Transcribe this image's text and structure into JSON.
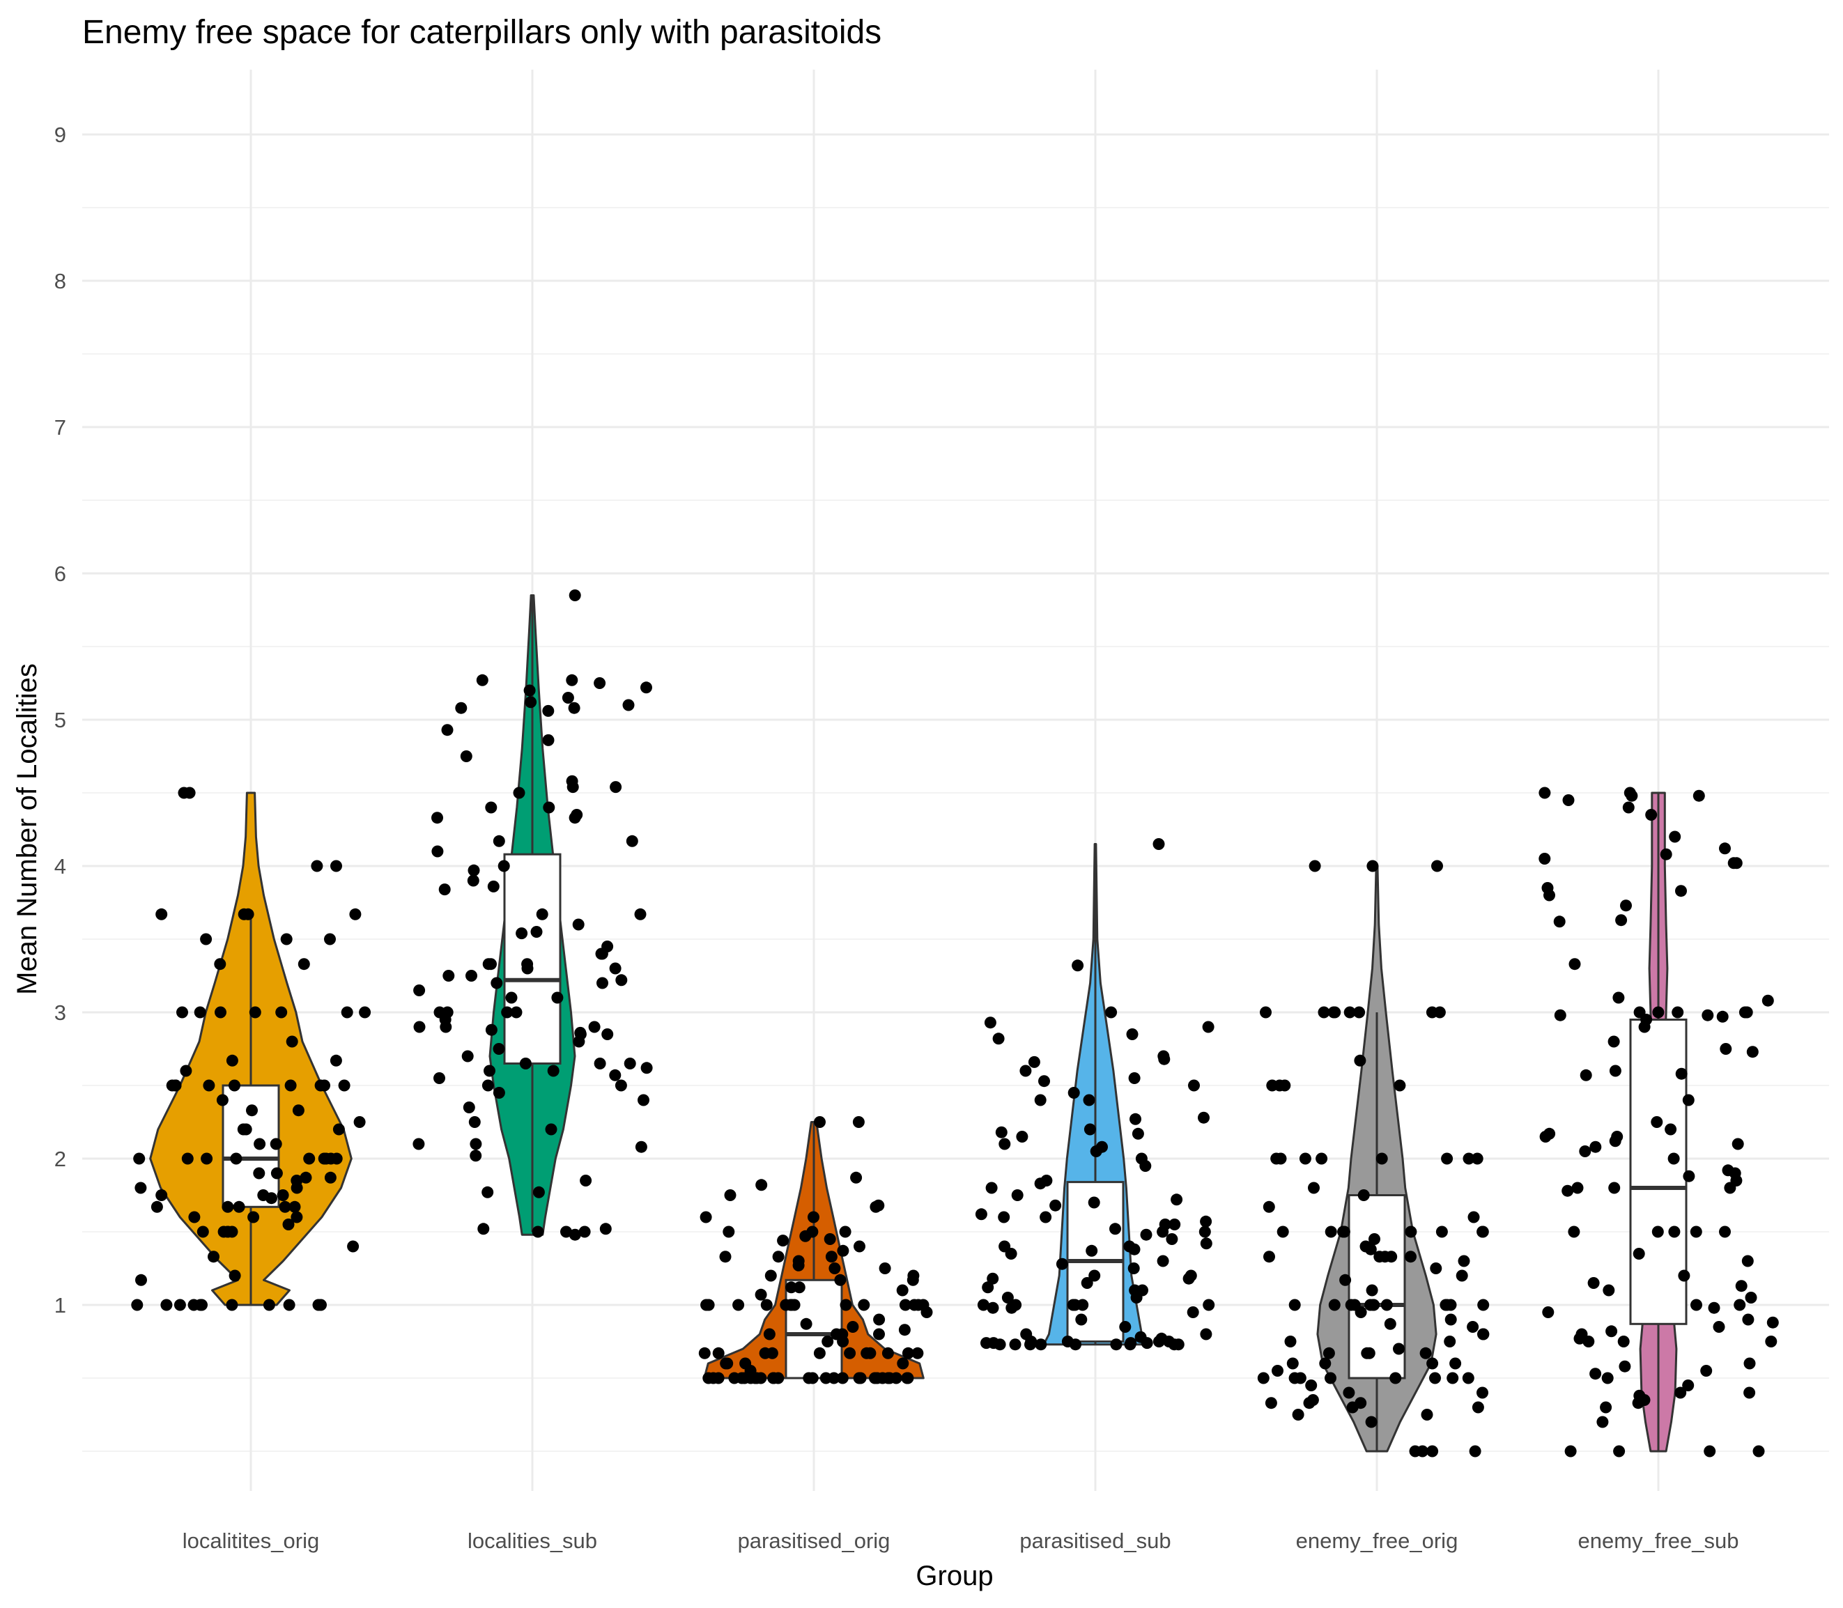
{
  "chart_data": {
    "type": "violin",
    "title": "Enemy free space for caterpillars only with parasitoids",
    "xlabel": "Group",
    "ylabel": "Mean Number of Localities",
    "ylim": [
      -0.3,
      9.45
    ],
    "y_ticks": [
      1,
      2,
      3,
      4,
      5,
      6,
      7,
      8,
      9
    ],
    "grid": true,
    "legend": "none",
    "categories": [
      "localitites_orig",
      "localities_sub",
      "parasitised_orig",
      "parasitised_sub",
      "enemy_free_orig",
      "enemy_free_sub"
    ],
    "series": [
      {
        "category": "localitites_orig",
        "color": "#E69F00",
        "box": {
          "q1": 1.67,
          "median": 2.0,
          "q3": 2.5,
          "whisker_low": 1.0,
          "whisker_high": 3.67
        },
        "violin_profile": [
          [
            1.0,
            0.2
          ],
          [
            1.1,
            0.3
          ],
          [
            1.17,
            0.1
          ],
          [
            1.3,
            0.25
          ],
          [
            1.6,
            0.55
          ],
          [
            1.8,
            0.7
          ],
          [
            2.0,
            0.78
          ],
          [
            2.2,
            0.72
          ],
          [
            2.5,
            0.55
          ],
          [
            2.8,
            0.4
          ],
          [
            3.0,
            0.35
          ],
          [
            3.2,
            0.28
          ],
          [
            3.5,
            0.18
          ],
          [
            3.8,
            0.1
          ],
          [
            4.0,
            0.06
          ],
          [
            4.2,
            0.04
          ],
          [
            4.5,
            0.03
          ]
        ],
        "points": [
          3.5,
          3.5,
          3.0,
          3.0,
          2.8,
          2.5,
          2.5,
          2.2,
          2.33,
          2.0,
          1.87,
          1.33,
          1.0,
          1.0,
          1.0,
          4.5,
          4.5,
          4.0,
          4.0,
          3.5,
          3.67,
          3.67,
          3.33,
          3.33,
          3.0,
          3.0,
          3.0,
          2.67,
          2.67,
          2.5,
          2.5,
          2.5,
          2.5,
          2.5,
          2.4,
          2.33,
          2.25,
          2.2,
          2.0,
          2.0,
          2.0,
          2.0,
          2.0,
          2.0,
          1.9,
          1.87,
          1.8,
          1.75,
          1.73,
          1.67,
          1.67,
          1.67,
          1.6,
          1.6,
          1.5,
          1.5,
          1.5,
          1.4,
          1.2,
          1.17,
          1.0,
          1.0,
          1.0,
          1.0,
          1.0,
          1.0,
          1.0,
          2.6,
          2.5,
          2.2,
          2.1,
          2.0,
          1.9,
          1.85,
          1.8,
          1.75,
          1.67,
          1.6,
          1.55,
          1.5,
          3.67,
          3.67,
          3.0,
          3.0,
          2.5,
          2.1,
          2.0,
          1.75,
          1.67,
          1.5,
          1.0
        ]
      },
      {
        "category": "localities_sub",
        "color": "#009E73",
        "box": {
          "q1": 2.65,
          "median": 3.22,
          "q3": 4.08,
          "whisker_low": 1.5,
          "whisker_high": 5.85
        },
        "violin_profile": [
          [
            1.48,
            0.08
          ],
          [
            1.6,
            0.1
          ],
          [
            1.8,
            0.14
          ],
          [
            2.0,
            0.18
          ],
          [
            2.2,
            0.24
          ],
          [
            2.5,
            0.3
          ],
          [
            2.7,
            0.33
          ],
          [
            3.0,
            0.3
          ],
          [
            3.3,
            0.26
          ],
          [
            3.6,
            0.22
          ],
          [
            4.0,
            0.17
          ],
          [
            4.4,
            0.12
          ],
          [
            4.8,
            0.08
          ],
          [
            5.2,
            0.05
          ],
          [
            5.6,
            0.025
          ],
          [
            5.85,
            0.01
          ]
        ],
        "points": [
          5.85,
          5.27,
          5.25,
          5.22,
          5.12,
          5.08,
          5.06,
          4.58,
          4.54,
          4.4,
          4.35,
          4.33,
          4.17,
          4.1,
          3.9,
          3.54,
          3.4,
          3.33,
          3.3,
          3.25,
          3.2,
          3.1,
          3.0,
          2.9,
          2.88,
          2.86,
          2.85,
          2.65,
          2.62,
          2.6,
          2.57,
          2.5,
          2.1,
          2.1,
          1.77,
          1.5,
          1.48,
          5.27,
          5.2,
          5.15,
          5.1,
          5.08,
          4.93,
          4.86,
          4.75,
          4.54,
          4.5,
          4.4,
          4.33,
          4.17,
          4.0,
          3.97,
          3.86,
          3.84,
          3.67,
          3.67,
          3.6,
          3.55,
          3.45,
          3.4,
          3.33,
          3.33,
          3.3,
          3.25,
          3.22,
          3.2,
          3.15,
          3.1,
          3.0,
          3.0,
          3.0,
          2.95,
          2.9,
          2.9,
          2.85,
          2.8,
          2.75,
          2.7,
          2.65,
          2.65,
          2.6,
          2.55,
          2.5,
          2.45,
          2.4,
          2.35,
          2.25,
          2.2,
          2.08,
          2.02,
          1.85,
          1.77,
          1.52,
          1.52,
          1.5,
          1.5
        ]
      },
      {
        "category": "parasitised_orig",
        "color": "#D55E00",
        "box": {
          "q1": 0.5,
          "median": 0.8,
          "q3": 1.17,
          "whisker_low": 0.5,
          "whisker_high": 2.25
        },
        "violin_profile": [
          [
            0.5,
            0.85
          ],
          [
            0.6,
            0.82
          ],
          [
            0.7,
            0.55
          ],
          [
            0.8,
            0.42
          ],
          [
            0.9,
            0.38
          ],
          [
            1.0,
            0.3
          ],
          [
            1.2,
            0.25
          ],
          [
            1.4,
            0.2
          ],
          [
            1.6,
            0.15
          ],
          [
            1.8,
            0.1
          ],
          [
            2.0,
            0.06
          ],
          [
            2.25,
            0.02
          ]
        ],
        "points": [
          2.25,
          2.25,
          1.87,
          1.82,
          1.75,
          1.67,
          1.6,
          1.5,
          1.5,
          1.47,
          1.44,
          1.4,
          1.37,
          1.33,
          1.33,
          1.3,
          1.27,
          1.25,
          1.2,
          1.2,
          1.17,
          1.17,
          1.12,
          1.1,
          1.07,
          1.0,
          1.0,
          1.0,
          1.0,
          1.0,
          1.0,
          1.0,
          1.0,
          1.0,
          1.0,
          1.0,
          1.0,
          1.0,
          0.95,
          0.9,
          0.87,
          0.85,
          0.83,
          0.8,
          0.8,
          0.8,
          0.75,
          0.75,
          0.67,
          0.67,
          0.67,
          0.67,
          0.67,
          0.67,
          0.67,
          0.67,
          0.67,
          0.67,
          0.6,
          0.6,
          0.6,
          0.55,
          0.5,
          0.5,
          0.5,
          0.5,
          0.5,
          0.5,
          0.5,
          0.5,
          0.5,
          0.5,
          0.5,
          0.5,
          0.5,
          0.5,
          0.5,
          0.5,
          0.5,
          0.5,
          0.5,
          0.5,
          0.5,
          0.5,
          0.5,
          0.5,
          0.5,
          0.5,
          1.68,
          1.6,
          1.5,
          1.45,
          1.33,
          1.25,
          1.12,
          1.0,
          0.8,
          0.67,
          0.6,
          0.5,
          0.5
        ]
      },
      {
        "category": "parasitised_sub",
        "color": "#56B4E9",
        "box": {
          "q1": 0.75,
          "median": 1.3,
          "q3": 1.84,
          "whisker_low": 0.73,
          "whisker_high": 4.15
        },
        "violin_profile": [
          [
            0.73,
            0.4
          ],
          [
            0.8,
            0.36
          ],
          [
            1.0,
            0.32
          ],
          [
            1.2,
            0.28
          ],
          [
            1.5,
            0.26
          ],
          [
            1.8,
            0.24
          ],
          [
            2.0,
            0.22
          ],
          [
            2.3,
            0.18
          ],
          [
            2.6,
            0.14
          ],
          [
            2.9,
            0.09
          ],
          [
            3.2,
            0.04
          ],
          [
            3.5,
            0.015
          ],
          [
            4.15,
            0.005
          ]
        ],
        "points": [
          4.15,
          3.32,
          2.93,
          2.9,
          2.7,
          2.68,
          2.66,
          2.6,
          2.55,
          2.5,
          2.45,
          2.4,
          2.28,
          2.27,
          2.2,
          2.17,
          2.08,
          2.05,
          2.0,
          1.95,
          1.85,
          1.83,
          1.8,
          1.75,
          1.72,
          1.7,
          1.68,
          1.62,
          1.6,
          1.57,
          1.55,
          1.52,
          1.5,
          1.5,
          1.48,
          1.45,
          1.42,
          1.4,
          1.38,
          1.35,
          1.3,
          1.28,
          1.25,
          1.2,
          1.18,
          1.15,
          1.12,
          1.1,
          1.05,
          1.0,
          1.0,
          1.0,
          1.0,
          0.98,
          0.95,
          0.9,
          0.85,
          0.8,
          0.77,
          0.75,
          0.75,
          0.75,
          0.74,
          0.74,
          0.74,
          0.73,
          0.73,
          0.73,
          0.73,
          0.73,
          0.73,
          0.73,
          0.73,
          3.0,
          2.85,
          2.82,
          2.53,
          2.4,
          2.18,
          2.15,
          2.1,
          1.6,
          1.55,
          1.4,
          1.37,
          1.2,
          1.18,
          1.1,
          1.05,
          1.0,
          1.0,
          0.98,
          0.8,
          0.78,
          0.75,
          0.74,
          0.73
        ]
      },
      {
        "category": "enemy_free_orig",
        "color": "#999999",
        "box": {
          "q1": 0.5,
          "median": 1.0,
          "q3": 1.75,
          "whisker_low": 0.0,
          "whisker_high": 3.0
        },
        "violin_profile": [
          [
            0.0,
            0.08
          ],
          [
            0.2,
            0.18
          ],
          [
            0.4,
            0.3
          ],
          [
            0.6,
            0.42
          ],
          [
            0.8,
            0.46
          ],
          [
            1.0,
            0.44
          ],
          [
            1.2,
            0.38
          ],
          [
            1.5,
            0.28
          ],
          [
            1.8,
            0.22
          ],
          [
            2.0,
            0.2
          ],
          [
            2.3,
            0.16
          ],
          [
            2.6,
            0.12
          ],
          [
            3.0,
            0.07
          ],
          [
            3.3,
            0.035
          ],
          [
            3.6,
            0.015
          ],
          [
            4.0,
            0.005
          ]
        ],
        "points": [
          4.0,
          4.0,
          3.0,
          3.0,
          3.0,
          3.0,
          3.0,
          3.0,
          2.67,
          2.5,
          2.5,
          2.0,
          2.0,
          2.0,
          2.0,
          2.0,
          2.0,
          2.0,
          1.8,
          1.6,
          1.5,
          1.5,
          1.5,
          1.5,
          1.5,
          1.5,
          1.5,
          1.45,
          1.4,
          1.38,
          1.33,
          1.33,
          1.33,
          1.33,
          1.3,
          1.25,
          1.2,
          1.17,
          1.1,
          1.0,
          1.0,
          1.0,
          1.0,
          1.0,
          1.0,
          1.0,
          1.0,
          1.0,
          1.0,
          1.0,
          0.95,
          0.9,
          0.87,
          0.85,
          0.8,
          0.8,
          0.75,
          0.7,
          0.67,
          0.67,
          0.67,
          0.6,
          0.6,
          0.6,
          0.55,
          0.5,
          0.5,
          0.5,
          0.5,
          0.5,
          0.5,
          0.5,
          0.45,
          0.4,
          0.4,
          0.35,
          0.33,
          0.33,
          0.3,
          0.25,
          0.2,
          0.0,
          0.0,
          0.0,
          0.0,
          4.0,
          3.0,
          3.0,
          2.5,
          2.5,
          2.0,
          1.75,
          1.67,
          1.5,
          1.33,
          1.0,
          0.75,
          0.67,
          0.6,
          0.5,
          0.33,
          0.3,
          0.25
        ]
      },
      {
        "category": "enemy_free_sub",
        "color": "#CC79A7",
        "box": {
          "q1": 0.87,
          "median": 1.8,
          "q3": 2.95,
          "whisker_low": 0.0,
          "whisker_high": 4.5
        },
        "violin_profile": [
          [
            0.0,
            0.06
          ],
          [
            0.2,
            0.1
          ],
          [
            0.4,
            0.13
          ],
          [
            0.7,
            0.14
          ],
          [
            0.9,
            0.12
          ],
          [
            1.2,
            0.09
          ],
          [
            1.5,
            0.07
          ],
          [
            2.0,
            0.05
          ],
          [
            2.5,
            0.045
          ],
          [
            3.0,
            0.06
          ],
          [
            3.3,
            0.07
          ],
          [
            3.6,
            0.06
          ],
          [
            4.0,
            0.05
          ],
          [
            4.3,
            0.05
          ],
          [
            4.5,
            0.05
          ]
        ],
        "points": [
          4.5,
          4.5,
          4.48,
          4.45,
          4.4,
          4.35,
          4.2,
          4.12,
          4.08,
          4.05,
          4.02,
          3.85,
          3.83,
          3.8,
          3.73,
          3.63,
          3.62,
          3.33,
          3.1,
          3.08,
          3.0,
          3.0,
          3.0,
          3.0,
          2.98,
          2.97,
          2.95,
          2.9,
          2.8,
          2.75,
          2.73,
          2.6,
          2.58,
          2.57,
          2.4,
          2.25,
          2.2,
          2.17,
          2.15,
          2.12,
          2.1,
          2.08,
          2.05,
          2.0,
          1.92,
          1.9,
          1.88,
          1.85,
          1.8,
          1.8,
          1.78,
          1.5,
          1.5,
          1.5,
          1.5,
          1.35,
          1.3,
          1.2,
          1.15,
          1.13,
          1.1,
          1.05,
          1.0,
          1.0,
          0.98,
          0.95,
          0.9,
          0.88,
          0.85,
          0.82,
          0.8,
          0.77,
          0.75,
          0.75,
          0.6,
          0.58,
          0.55,
          0.53,
          0.5,
          0.45,
          0.4,
          0.38,
          0.35,
          0.33,
          0.3,
          0.2,
          0.0,
          0.0,
          0.0,
          0.0,
          4.48,
          4.02,
          3.0,
          2.98,
          2.15,
          1.8,
          1.5,
          0.75,
          0.4
        ]
      }
    ]
  }
}
